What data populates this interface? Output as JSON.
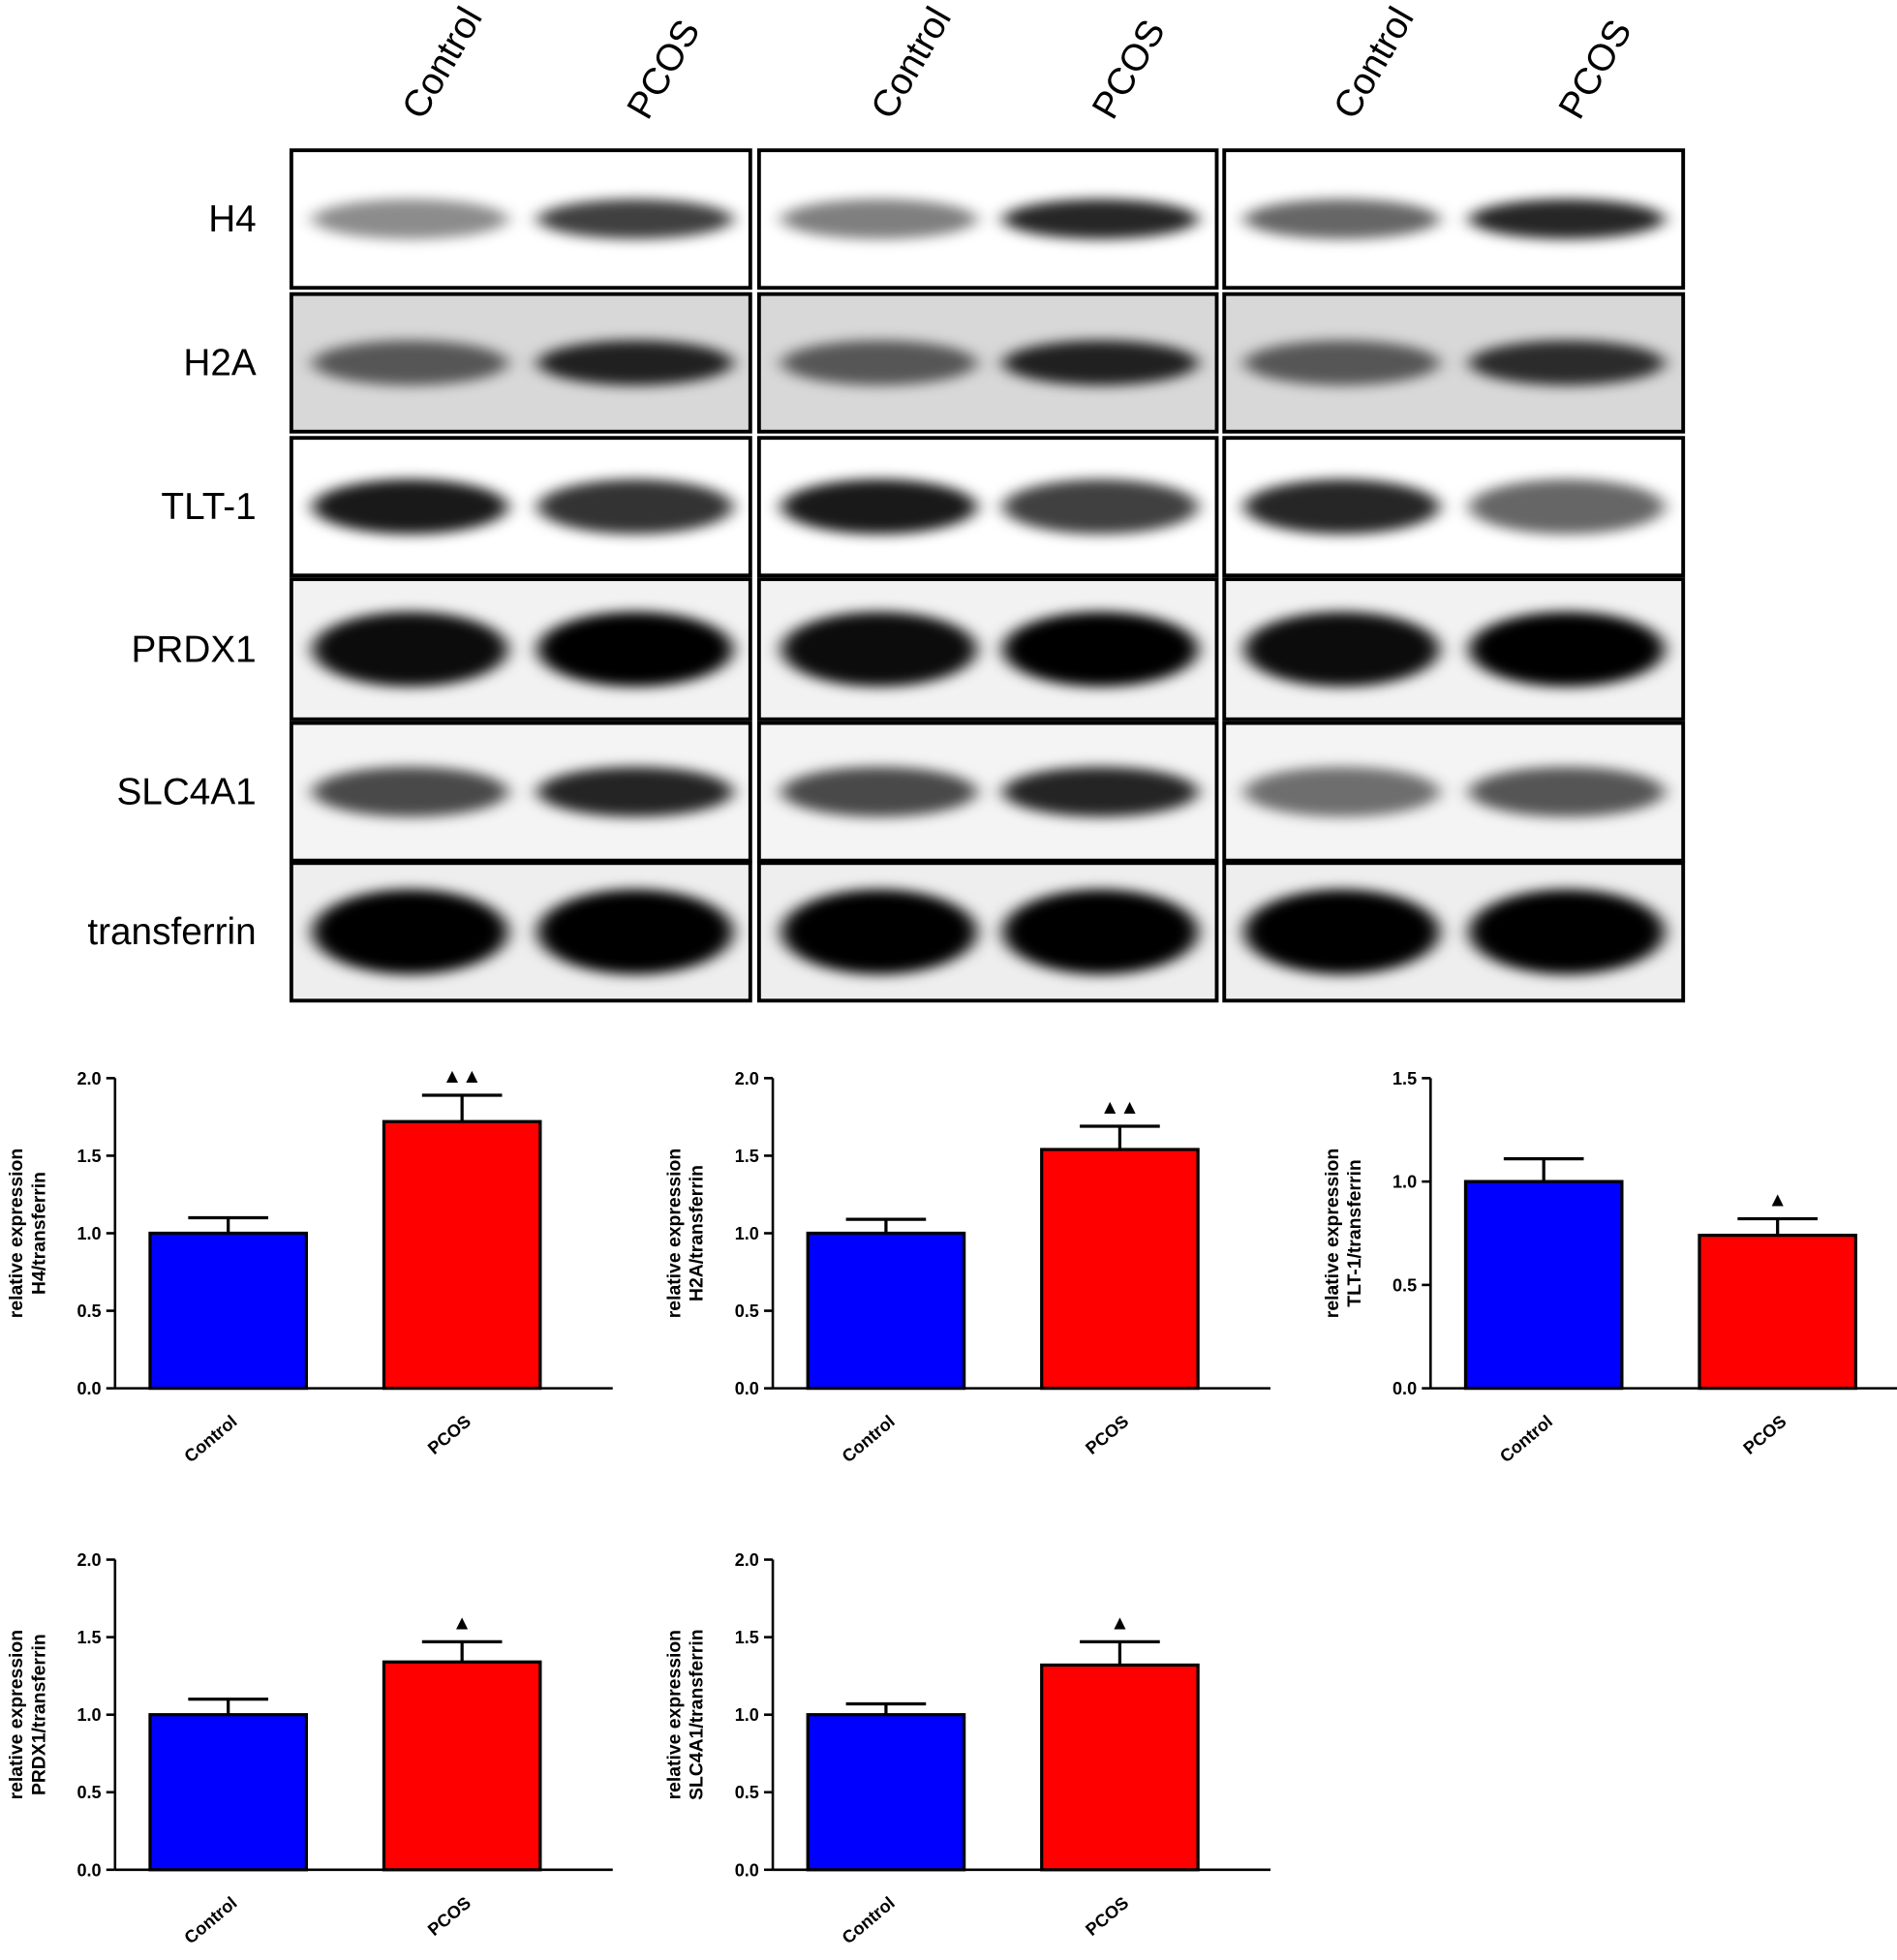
{
  "blot": {
    "lanes": [
      "Control",
      "PCOS",
      "Control",
      "PCOS",
      "Control",
      "PCOS"
    ],
    "rows": [
      "H4",
      "H2A",
      "TLT-1",
      "PRDX1",
      "SLC4A1",
      "transferrin"
    ]
  },
  "chart_data": [
    {
      "type": "bar",
      "ylabel": [
        "relative expression",
        "H4/transferrin"
      ],
      "categories": [
        "Control",
        "PCOS"
      ],
      "values": [
        1.0,
        1.72
      ],
      "errors": [
        0.1,
        0.17
      ],
      "colors": [
        "#0000ff",
        "#ff0000"
      ],
      "ylim": [
        0,
        2.0
      ],
      "yticks": [
        {
          "value": 0,
          "label": "0.0"
        },
        {
          "value": 0.5,
          "label": "0.5"
        },
        {
          "value": 1,
          "label": "1.0"
        },
        {
          "value": 1.5,
          "label": "1.5"
        },
        {
          "value": 2,
          "label": "2.0"
        }
      ],
      "annotation": {
        "text": "▲▲",
        "x": "PCOS"
      }
    },
    {
      "type": "bar",
      "ylabel": [
        "relative expression",
        "H2A/transferrin"
      ],
      "categories": [
        "Control",
        "PCOS"
      ],
      "values": [
        1.0,
        1.54
      ],
      "errors": [
        0.09,
        0.15
      ],
      "colors": [
        "#0000ff",
        "#ff0000"
      ],
      "ylim": [
        0,
        2.0
      ],
      "yticks": [
        {
          "value": 0,
          "label": "0.0"
        },
        {
          "value": 0.5,
          "label": "0.5"
        },
        {
          "value": 1,
          "label": "1.0"
        },
        {
          "value": 1.5,
          "label": "1.5"
        },
        {
          "value": 2,
          "label": "2.0"
        }
      ],
      "annotation": {
        "text": "▲▲",
        "x": "PCOS"
      }
    },
    {
      "type": "bar",
      "ylabel": [
        "relative expression",
        "TLT-1/transferrin"
      ],
      "categories": [
        "Control",
        "PCOS"
      ],
      "values": [
        1.0,
        0.74
      ],
      "errors": [
        0.11,
        0.08
      ],
      "colors": [
        "#0000ff",
        "#ff0000"
      ],
      "ylim": [
        0,
        1.5
      ],
      "yticks": [
        {
          "value": 0,
          "label": "0.0"
        },
        {
          "value": 0.5,
          "label": "0.5"
        },
        {
          "value": 1,
          "label": "1.0"
        },
        {
          "value": 1.5,
          "label": "1.5"
        }
      ],
      "annotation": {
        "text": "▲",
        "x": "PCOS"
      }
    },
    {
      "type": "bar",
      "ylabel": [
        "relative expression",
        "PRDX1/transferrin"
      ],
      "categories": [
        "Control",
        "PCOS"
      ],
      "values": [
        1.0,
        1.34
      ],
      "errors": [
        0.1,
        0.13
      ],
      "colors": [
        "#0000ff",
        "#ff0000"
      ],
      "ylim": [
        0,
        2.0
      ],
      "yticks": [
        {
          "value": 0,
          "label": "0.0"
        },
        {
          "value": 0.5,
          "label": "0.5"
        },
        {
          "value": 1,
          "label": "1.0"
        },
        {
          "value": 1.5,
          "label": "1.5"
        },
        {
          "value": 2,
          "label": "2.0"
        }
      ],
      "annotation": {
        "text": "▲",
        "x": "PCOS"
      }
    },
    {
      "type": "bar",
      "ylabel": [
        "relative expression",
        "SLC4A1/transferrin"
      ],
      "categories": [
        "Control",
        "PCOS"
      ],
      "values": [
        1.0,
        1.32
      ],
      "errors": [
        0.07,
        0.15
      ],
      "colors": [
        "#0000ff",
        "#ff0000"
      ],
      "ylim": [
        0,
        2.0
      ],
      "yticks": [
        {
          "value": 0,
          "label": "0.0"
        },
        {
          "value": 0.5,
          "label": "0.5"
        },
        {
          "value": 1,
          "label": "1.0"
        },
        {
          "value": 1.5,
          "label": "1.5"
        },
        {
          "value": 2,
          "label": "2.0"
        }
      ],
      "annotation": {
        "text": "▲",
        "x": "PCOS"
      }
    }
  ]
}
